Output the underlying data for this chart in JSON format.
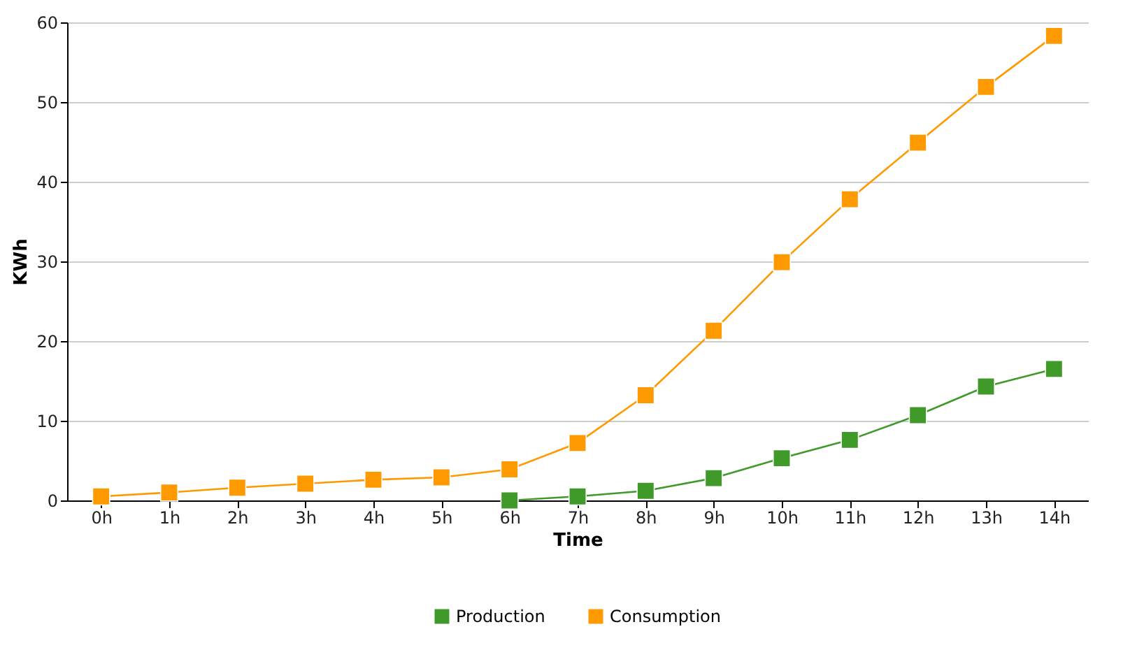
{
  "chart_data": {
    "type": "line",
    "xlabel": "Time",
    "ylabel": "KWh",
    "categories": [
      "0h",
      "1h",
      "2h",
      "3h",
      "4h",
      "5h",
      "6h",
      "7h",
      "8h",
      "9h",
      "10h",
      "11h",
      "12h",
      "13h",
      "14h"
    ],
    "series": [
      {
        "name": "Production",
        "color": "#3f9a2a",
        "values": [
          null,
          null,
          null,
          null,
          null,
          null,
          0,
          0.5,
          1.2,
          2.8,
          5.3,
          7.6,
          10.7,
          14.3,
          16.5
        ]
      },
      {
        "name": "Consumption",
        "color": "#ff9900",
        "values": [
          0.5,
          1,
          1.6,
          2.1,
          2.6,
          2.9,
          3.9,
          7.2,
          13.2,
          21.3,
          29.9,
          37.8,
          44.9,
          51.9,
          58.3
        ]
      }
    ],
    "ylim": [
      0,
      60
    ],
    "yticks": [
      0,
      10,
      20,
      30,
      40,
      50,
      60
    ],
    "grid": "y",
    "legend": "bottom",
    "marker": "square",
    "line_style": "solid"
  }
}
